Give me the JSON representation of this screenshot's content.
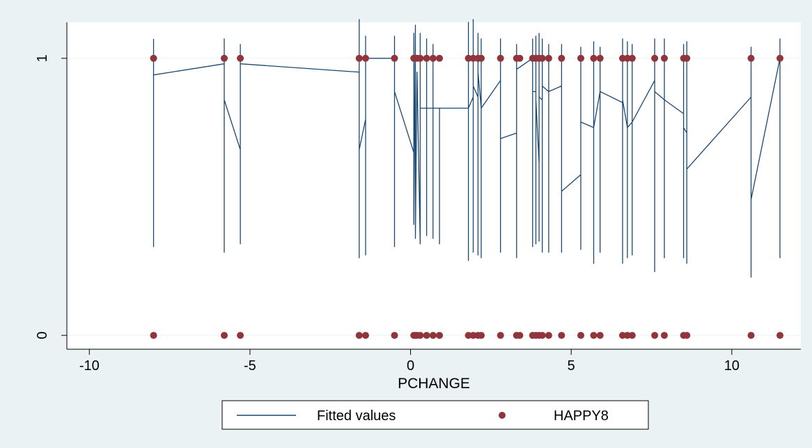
{
  "chart_data": {
    "type": "scatter",
    "xlabel": "PCHANGE",
    "ylabel": "",
    "xlim": [
      -10.7,
      12.15
    ],
    "ylim": [
      -0.05,
      1.13
    ],
    "xticks": [
      -10,
      -5,
      0,
      5,
      10
    ],
    "yticks": [
      0,
      1
    ],
    "xtick_labels": [
      "-10",
      "-5",
      "0",
      "5",
      "10"
    ],
    "ytick_labels": [
      "0",
      "1"
    ],
    "grid": "horizontal",
    "legend_placement": "bottom",
    "colors": {
      "fitted": "#1a476f",
      "happy": "#90353b",
      "background": "#eaf2f3",
      "plot_background": "#ffffff"
    },
    "series": [
      {
        "name": "Fitted values",
        "kind": "line",
        "points": [
          [
            -8.0,
            1.07
          ],
          [
            -8.0,
            0.32
          ],
          [
            -8.0,
            0.94
          ],
          [
            -5.8,
            0.98
          ],
          [
            -5.8,
            1.07
          ],
          [
            -5.8,
            0.3
          ],
          [
            -5.8,
            0.85
          ],
          [
            -5.3,
            0.67
          ],
          [
            -5.3,
            0.33
          ],
          [
            -5.3,
            1.05
          ],
          [
            -5.3,
            0.98
          ],
          [
            -1.6,
            0.95
          ],
          [
            -1.6,
            1.14
          ],
          [
            -1.6,
            0.28
          ],
          [
            -1.6,
            0.67
          ],
          [
            -1.4,
            0.78
          ],
          [
            -1.4,
            0.29
          ],
          [
            -1.4,
            1.08
          ],
          [
            -1.4,
            1.0
          ],
          [
            -0.5,
            1.0
          ],
          [
            -0.5,
            1.08
          ],
          [
            -0.5,
            0.32
          ],
          [
            -0.5,
            0.88
          ],
          [
            0.1,
            0.66
          ],
          [
            0.1,
            1.09
          ],
          [
            0.1,
            0.4
          ],
          [
            0.15,
            1.12
          ],
          [
            0.15,
            0.35
          ],
          [
            0.2,
            0.95
          ],
          [
            0.3,
            0.33
          ],
          [
            0.3,
            1.09
          ],
          [
            0.3,
            0.9
          ],
          [
            0.3,
            0.82
          ],
          [
            0.5,
            0.82
          ],
          [
            0.5,
            1.07
          ],
          [
            0.5,
            0.36
          ],
          [
            0.5,
            0.82
          ],
          [
            0.7,
            0.82
          ],
          [
            0.7,
            0.35
          ],
          [
            0.7,
            1.05
          ],
          [
            0.7,
            0.82
          ],
          [
            0.9,
            0.82
          ],
          [
            0.9,
            0.33
          ],
          [
            0.9,
            0.82
          ],
          [
            1.8,
            0.82
          ],
          [
            1.8,
            1.13
          ],
          [
            1.8,
            0.27
          ],
          [
            1.8,
            0.82
          ],
          [
            1.95,
            0.86
          ],
          [
            1.95,
            1.14
          ],
          [
            1.95,
            0.3
          ],
          [
            1.95,
            0.9
          ],
          [
            2.1,
            0.86
          ],
          [
            2.1,
            1.09
          ],
          [
            2.1,
            0.29
          ],
          [
            2.1,
            0.95
          ],
          [
            2.2,
            0.82
          ],
          [
            2.2,
            1.07
          ],
          [
            2.2,
            0.28
          ],
          [
            2.2,
            0.82
          ],
          [
            2.8,
            0.92
          ],
          [
            2.8,
            1.07
          ],
          [
            2.8,
            0.3
          ],
          [
            2.8,
            0.71
          ],
          [
            3.3,
            0.73
          ],
          [
            3.3,
            1.05
          ],
          [
            3.3,
            0.28
          ],
          [
            3.3,
            0.96
          ],
          [
            3.8,
            1.0
          ],
          [
            3.8,
            1.07
          ],
          [
            3.8,
            0.32
          ],
          [
            3.8,
            0.88
          ],
          [
            3.9,
            0.88
          ],
          [
            3.9,
            1.08
          ],
          [
            3.9,
            0.33
          ],
          [
            3.9,
            0.85
          ],
          [
            4.0,
            0.62
          ],
          [
            4.0,
            1.09
          ],
          [
            4.0,
            0.34
          ],
          [
            4.0,
            0.86
          ],
          [
            4.1,
            0.85
          ],
          [
            4.1,
            1.07
          ],
          [
            4.1,
            0.3
          ],
          [
            4.1,
            0.9
          ],
          [
            4.3,
            0.88
          ],
          [
            4.3,
            1.05
          ],
          [
            4.3,
            0.3
          ],
          [
            4.3,
            0.88
          ],
          [
            4.7,
            0.9
          ],
          [
            4.7,
            1.05
          ],
          [
            4.7,
            0.3
          ],
          [
            4.7,
            0.52
          ],
          [
            5.3,
            0.58
          ],
          [
            5.3,
            1.04
          ],
          [
            5.3,
            0.31
          ],
          [
            5.3,
            0.77
          ],
          [
            5.7,
            0.75
          ],
          [
            5.7,
            1.06
          ],
          [
            5.7,
            0.26
          ],
          [
            5.7,
            0.75
          ],
          [
            5.9,
            0.88
          ],
          [
            5.9,
            1.04
          ],
          [
            5.9,
            0.3
          ],
          [
            5.9,
            0.88
          ],
          [
            6.6,
            0.84
          ],
          [
            6.6,
            1.07
          ],
          [
            6.6,
            0.26
          ],
          [
            6.6,
            0.85
          ],
          [
            6.75,
            0.75
          ],
          [
            6.75,
            1.06
          ],
          [
            6.75,
            0.28
          ],
          [
            6.75,
            0.75
          ],
          [
            6.9,
            0.77
          ],
          [
            6.9,
            1.05
          ],
          [
            6.9,
            0.29
          ],
          [
            6.9,
            0.77
          ],
          [
            7.6,
            0.92
          ],
          [
            7.6,
            1.07
          ],
          [
            7.6,
            0.23
          ],
          [
            7.6,
            0.88
          ],
          [
            7.9,
            0.85
          ],
          [
            7.9,
            1.07
          ],
          [
            7.9,
            0.28
          ],
          [
            7.9,
            0.85
          ],
          [
            8.5,
            0.8
          ],
          [
            8.5,
            1.05
          ],
          [
            8.5,
            0.28
          ],
          [
            8.5,
            0.75
          ],
          [
            8.6,
            0.73
          ],
          [
            8.6,
            1.06
          ],
          [
            8.6,
            0.26
          ],
          [
            8.6,
            0.6
          ],
          [
            10.6,
            0.86
          ],
          [
            10.6,
            1.04
          ],
          [
            10.6,
            0.21
          ],
          [
            10.6,
            0.49
          ],
          [
            11.5,
            1.0
          ],
          [
            11.5,
            1.07
          ],
          [
            11.5,
            0.28
          ],
          [
            11.5,
            1.0
          ]
        ]
      },
      {
        "name": "HAPPY8",
        "kind": "scatter",
        "x": [
          -8.0,
          -5.8,
          -5.3,
          -1.6,
          -1.4,
          -0.5,
          0.1,
          0.15,
          0.2,
          0.3,
          0.5,
          0.7,
          0.9,
          1.8,
          1.95,
          2.1,
          2.2,
          2.8,
          3.3,
          3.4,
          3.8,
          3.9,
          4.0,
          4.1,
          4.3,
          4.7,
          5.3,
          5.7,
          5.9,
          6.6,
          6.75,
          6.9,
          7.6,
          7.9,
          8.5,
          8.6,
          10.6,
          11.5
        ],
        "y1": [
          1,
          1,
          1,
          1,
          1,
          1,
          1,
          1,
          1,
          1,
          1,
          1,
          1,
          1,
          1,
          1,
          1,
          1,
          1,
          1,
          1,
          1,
          1,
          1,
          1,
          1,
          1,
          1,
          1,
          1,
          1,
          1,
          1,
          1,
          1,
          1,
          1,
          1
        ],
        "y0": [
          0,
          0,
          0,
          0,
          0,
          0,
          0,
          0,
          0,
          0,
          0,
          0,
          0,
          0,
          0,
          0,
          0,
          0,
          0,
          0,
          0,
          0,
          0,
          0,
          0,
          0,
          0,
          0,
          0,
          0,
          0,
          0,
          0,
          0,
          0,
          0,
          0,
          0
        ]
      }
    ],
    "legend": {
      "fitted_label": "Fitted values",
      "happy_label": "HAPPY8"
    }
  }
}
